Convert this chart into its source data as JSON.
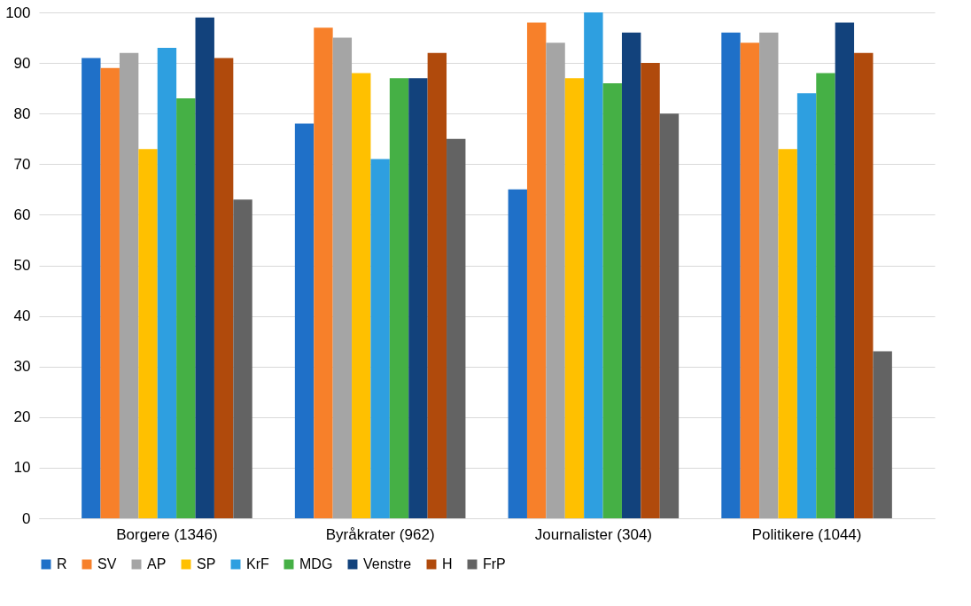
{
  "chart_data": {
    "type": "bar",
    "categories": [
      "Borgere (1346)",
      "Byråkrater (962)",
      "Journalister (304)",
      "Politikere (1044)"
    ],
    "series": [
      {
        "name": "R",
        "color": "#1f70c8",
        "values": [
          91,
          78,
          65,
          96
        ]
      },
      {
        "name": "SV",
        "color": "#f7802a",
        "values": [
          89,
          97,
          98,
          94
        ]
      },
      {
        "name": "AP",
        "color": "#a5a5a5",
        "values": [
          92,
          95,
          94,
          96
        ]
      },
      {
        "name": "SP",
        "color": "#ffc000",
        "values": [
          73,
          88,
          87,
          73
        ]
      },
      {
        "name": "KrF",
        "color": "#2e9fe0",
        "values": [
          93,
          71,
          100,
          84
        ]
      },
      {
        "name": "MDG",
        "color": "#45b045",
        "values": [
          83,
          87,
          86,
          88
        ]
      },
      {
        "name": "Venstre",
        "color": "#12427c",
        "values": [
          99,
          87,
          96,
          98
        ]
      },
      {
        "name": "H",
        "color": "#b04a0c",
        "values": [
          91,
          92,
          90,
          92
        ]
      },
      {
        "name": "FrP",
        "color": "#636363",
        "values": [
          63,
          75,
          80,
          33
        ]
      }
    ],
    "ylim": [
      0,
      100
    ],
    "yticks": [
      0,
      10,
      20,
      30,
      40,
      50,
      60,
      70,
      80,
      90,
      100
    ],
    "grid": "y",
    "legend": "bottom"
  }
}
